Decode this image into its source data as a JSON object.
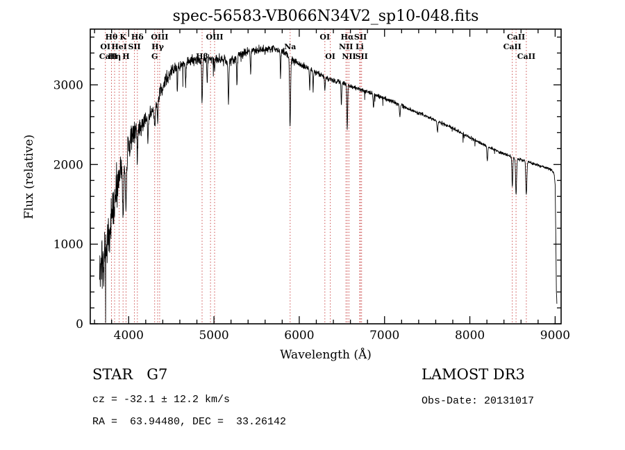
{
  "chart_data": {
    "type": "line",
    "title": "spec-56583-VB066N34V2_sp10-048.fits",
    "xlabel": "Wavelength (Å)",
    "ylabel": "Flux (relative)",
    "xlim": [
      3550,
      9070
    ],
    "ylim": [
      0,
      3700
    ],
    "x_major_ticks": [
      4000,
      5000,
      6000,
      7000,
      8000,
      9000
    ],
    "x_minor_step": 200,
    "y_major_ticks": [
      0,
      1000,
      2000,
      3000
    ],
    "y_minor_step": 200,
    "grid": false,
    "legend": null,
    "line_color": "#000000",
    "marker_line_color": "#cc4c4c",
    "marker_label_color": "#7a1f1f",
    "spectrum": {
      "x_start": 3660,
      "x_end": 9020,
      "step": 2.5,
      "seed": 20131017,
      "continuum": [
        [
          3660,
          600
        ],
        [
          3700,
          800
        ],
        [
          3750,
          1050
        ],
        [
          3800,
          1300
        ],
        [
          3850,
          1650
        ],
        [
          3900,
          1950
        ],
        [
          3960,
          2050
        ],
        [
          4000,
          2250
        ],
        [
          4060,
          2400
        ],
        [
          4150,
          2500
        ],
        [
          4250,
          2620
        ],
        [
          4400,
          2980
        ],
        [
          4500,
          3180
        ],
        [
          4600,
          3240
        ],
        [
          4700,
          3300
        ],
        [
          4800,
          3320
        ],
        [
          4900,
          3310
        ],
        [
          5000,
          3340
        ],
        [
          5100,
          3320
        ],
        [
          5200,
          3290
        ],
        [
          5300,
          3380
        ],
        [
          5400,
          3420
        ],
        [
          5500,
          3440
        ],
        [
          5600,
          3450
        ],
        [
          5700,
          3450
        ],
        [
          5800,
          3420
        ],
        [
          5900,
          3330
        ],
        [
          6000,
          3260
        ],
        [
          6100,
          3210
        ],
        [
          6200,
          3160
        ],
        [
          6300,
          3090
        ],
        [
          6400,
          3060
        ],
        [
          6500,
          3030
        ],
        [
          6600,
          2990
        ],
        [
          6700,
          2950
        ],
        [
          6800,
          2910
        ],
        [
          7000,
          2830
        ],
        [
          7200,
          2740
        ],
        [
          7400,
          2650
        ],
        [
          7600,
          2550
        ],
        [
          7800,
          2460
        ],
        [
          8000,
          2340
        ],
        [
          8200,
          2230
        ],
        [
          8400,
          2130
        ],
        [
          8600,
          2060
        ],
        [
          8800,
          1990
        ],
        [
          8950,
          1940
        ],
        [
          8985,
          1900
        ],
        [
          9000,
          1750
        ],
        [
          9008,
          1100
        ],
        [
          9015,
          400
        ],
        [
          9020,
          250
        ]
      ],
      "noise_envelope": [
        [
          3660,
          500
        ],
        [
          3700,
          480
        ],
        [
          3750,
          430
        ],
        [
          3800,
          400
        ],
        [
          3850,
          430
        ],
        [
          3900,
          400
        ],
        [
          3950,
          330
        ],
        [
          4000,
          260
        ],
        [
          4100,
          200
        ],
        [
          4200,
          160
        ],
        [
          4300,
          130
        ],
        [
          4500,
          120
        ],
        [
          4700,
          110
        ],
        [
          5000,
          95
        ],
        [
          5500,
          80
        ],
        [
          6000,
          60
        ],
        [
          6500,
          46
        ],
        [
          7000,
          38
        ],
        [
          7500,
          33
        ],
        [
          8000,
          30
        ],
        [
          8500,
          28
        ],
        [
          9020,
          26
        ]
      ],
      "absorption_dips": [
        [
          3934,
          650,
          7
        ],
        [
          3969,
          600,
          7
        ],
        [
          4102,
          350,
          6
        ],
        [
          4226,
          350,
          4
        ],
        [
          4305,
          250,
          8
        ],
        [
          4340,
          350,
          5
        ],
        [
          4571,
          300,
          4
        ],
        [
          4668,
          280,
          4
        ],
        [
          4861,
          550,
          5
        ],
        [
          4920,
          300,
          4
        ],
        [
          5007,
          150,
          4
        ],
        [
          5170,
          550,
          5
        ],
        [
          5270,
          380,
          4
        ],
        [
          5430,
          300,
          4
        ],
        [
          5780,
          300,
          4
        ],
        [
          5893,
          850,
          6
        ],
        [
          6122,
          250,
          4
        ],
        [
          6162,
          230,
          4
        ],
        [
          6300,
          150,
          4
        ],
        [
          6494,
          280,
          4
        ],
        [
          6563,
          550,
          5
        ],
        [
          6870,
          160,
          5
        ],
        [
          7180,
          150,
          5
        ],
        [
          7620,
          130,
          5
        ],
        [
          8205,
          180,
          5
        ],
        [
          8498,
          380,
          5
        ],
        [
          8542,
          460,
          6
        ],
        [
          8662,
          420,
          6
        ]
      ]
    },
    "spectral_lines": {
      "wavelengths": [
        3727,
        3798,
        3835,
        3889,
        3934,
        3969,
        4068,
        4102,
        4305,
        4340,
        4363,
        4861,
        4959,
        5007,
        5893,
        6300,
        6364,
        6548,
        6563,
        6583,
        6708,
        6717,
        6731,
        8498,
        8542,
        8662
      ],
      "labels": [
        {
          "text": "Hθ",
          "wl": 3798,
          "row": 0
        },
        {
          "text": "K",
          "wl": 3934,
          "row": 0
        },
        {
          "text": "Hδ",
          "wl": 4102,
          "row": 0
        },
        {
          "text": "OIII",
          "wl": 4363,
          "row": 0
        },
        {
          "text": "OIII",
          "wl": 5007,
          "row": 0
        },
        {
          "text": "OI",
          "wl": 6300,
          "row": 0
        },
        {
          "text": "Hα",
          "wl": 6563,
          "row": 0
        },
        {
          "text": "SII",
          "wl": 6717,
          "row": 0
        },
        {
          "text": "CaII",
          "wl": 8542,
          "row": 0
        },
        {
          "text": "OI",
          "wl": 3727,
          "row": 1
        },
        {
          "text": "HeI",
          "wl": 3889,
          "row": 1
        },
        {
          "text": "SII",
          "wl": 4068,
          "row": 1
        },
        {
          "text": "Hγ",
          "wl": 4340,
          "row": 1
        },
        {
          "text": "Na",
          "wl": 5893,
          "row": 1
        },
        {
          "text": "NII",
          "wl": 6548,
          "row": 1
        },
        {
          "text": "Li",
          "wl": 6708,
          "row": 1
        },
        {
          "text": "CaII",
          "wl": 8498,
          "row": 1
        },
        {
          "text": "CaII",
          "wl": 3760,
          "row": 2
        },
        {
          "text": "Hη",
          "wl": 3835,
          "row": 2
        },
        {
          "text": "H",
          "wl": 3969,
          "row": 2
        },
        {
          "text": "G",
          "wl": 4305,
          "row": 2
        },
        {
          "text": "Hβ",
          "wl": 4861,
          "row": 2
        },
        {
          "text": "OI",
          "wl": 6364,
          "row": 2
        },
        {
          "text": "NII",
          "wl": 6583,
          "row": 2
        },
        {
          "text": "SII",
          "wl": 6731,
          "row": 2
        },
        {
          "text": "CaII",
          "wl": 8662,
          "row": 2
        }
      ]
    }
  },
  "annotations": {
    "class_line": "STAR   G7",
    "survey": "LAMOST DR3",
    "cz_line": "cz = -32.1 ± 12.2 km/s",
    "obs_date": "Obs-Date: 20131017",
    "ra_dec": "RA =  63.94480, DEC =  33.26142"
  }
}
